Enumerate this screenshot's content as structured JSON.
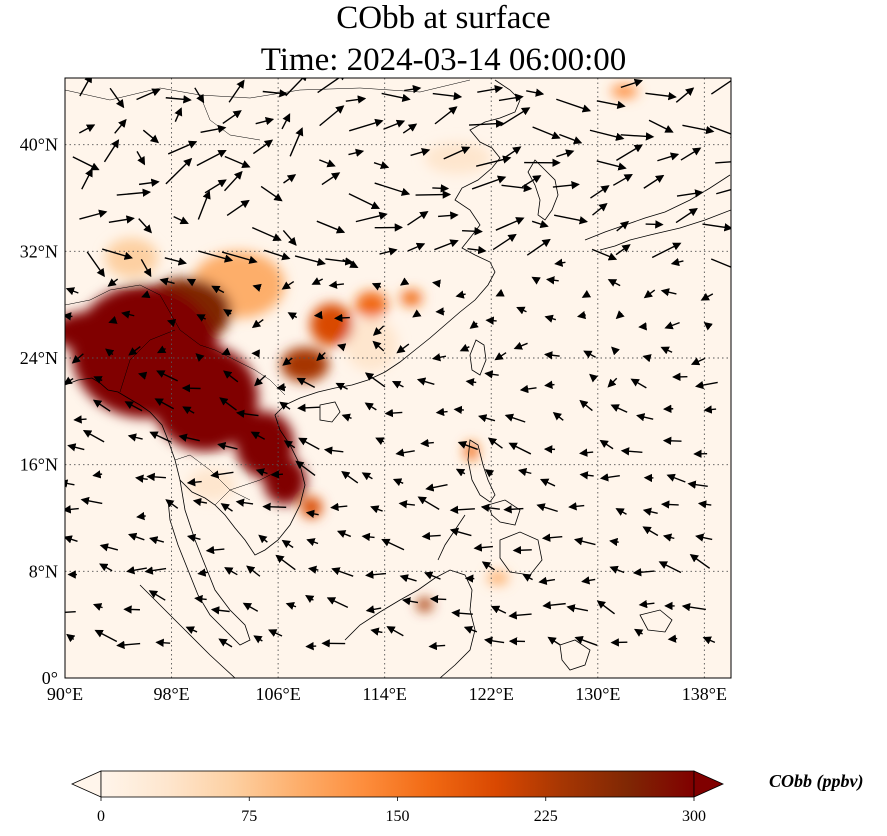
{
  "title_line1": "CObb at surface",
  "title_line2": "Time: 2024-03-14 06:00:00",
  "map": {
    "extent": {
      "lon_min": 90,
      "lon_max": 140,
      "lat_min": 0,
      "lat_max": 45
    },
    "lon_ticks": [
      90,
      98,
      106,
      114,
      122,
      130,
      138
    ],
    "lat_ticks": [
      0,
      8,
      16,
      24,
      32,
      40
    ],
    "lon_tick_labels": [
      "90°E",
      "98°E",
      "106°E",
      "114°E",
      "122°E",
      "130°E",
      "138°E"
    ],
    "lat_tick_labels": [
      "0°",
      "8°N",
      "16°N",
      "24°N",
      "32°N",
      "40°N"
    ],
    "gridlines": true
  },
  "colorbar": {
    "label": "CObb (ppbv)",
    "min": 0,
    "max": 300,
    "ticks": [
      0,
      75,
      150,
      225,
      300
    ],
    "tick_labels": [
      "0",
      "75",
      "150",
      "225",
      "300"
    ],
    "extend": "both",
    "colors": [
      "#fff5eb",
      "#fee6ce",
      "#fdd0a2",
      "#fdae6b",
      "#fd8d3c",
      "#f16913",
      "#d94801",
      "#a63603",
      "#7f2704",
      "#800000"
    ]
  },
  "plumes": [
    {
      "lon": 96.0,
      "lat": 24.5,
      "rx": 5.5,
      "ry": 5.0,
      "value": 300
    },
    {
      "lon": 92.0,
      "lat": 26.0,
      "rx": 3.0,
      "ry": 1.5,
      "value": 300
    },
    {
      "lon": 100.5,
      "lat": 21.0,
      "rx": 4.0,
      "ry": 4.0,
      "value": 300
    },
    {
      "lon": 105.0,
      "lat": 17.5,
      "rx": 2.2,
      "ry": 2.5,
      "value": 300
    },
    {
      "lon": 106.5,
      "lat": 14.8,
      "rx": 1.6,
      "ry": 1.8,
      "value": 290
    },
    {
      "lon": 99.0,
      "lat": 27.5,
      "rx": 3.5,
      "ry": 2.5,
      "value": 260
    },
    {
      "lon": 103.0,
      "lat": 29.5,
      "rx": 3.5,
      "ry": 2.5,
      "value": 110
    },
    {
      "lon": 110.0,
      "lat": 26.5,
      "rx": 1.6,
      "ry": 1.6,
      "value": 190
    },
    {
      "lon": 108.0,
      "lat": 23.5,
      "rx": 1.8,
      "ry": 1.3,
      "value": 220
    },
    {
      "lon": 113.0,
      "lat": 28.0,
      "rx": 1.2,
      "ry": 1.0,
      "value": 170
    },
    {
      "lon": 116.0,
      "lat": 28.5,
      "rx": 0.8,
      "ry": 0.6,
      "value": 180
    },
    {
      "lon": 113.0,
      "lat": 25.0,
      "rx": 2.0,
      "ry": 2.0,
      "value": 45
    },
    {
      "lon": 108.5,
      "lat": 12.8,
      "rx": 0.8,
      "ry": 0.8,
      "value": 190
    },
    {
      "lon": 101.0,
      "lat": 14.5,
      "rx": 1.8,
      "ry": 1.2,
      "value": 40
    },
    {
      "lon": 95.0,
      "lat": 31.5,
      "rx": 2.0,
      "ry": 1.5,
      "value": 70
    },
    {
      "lon": 117.0,
      "lat": 5.5,
      "rx": 0.6,
      "ry": 0.5,
      "value": 220
    },
    {
      "lon": 120.5,
      "lat": 17.0,
      "rx": 0.5,
      "ry": 0.7,
      "value": 150
    },
    {
      "lon": 122.5,
      "lat": 7.5,
      "rx": 0.8,
      "ry": 0.5,
      "value": 90
    },
    {
      "lon": 119.5,
      "lat": 39.0,
      "rx": 2.5,
      "ry": 1.2,
      "value": 30
    },
    {
      "lon": 132.0,
      "lat": 44.0,
      "rx": 1.0,
      "ry": 0.5,
      "value": 120
    },
    {
      "lon": 126.0,
      "lat": 33.0,
      "rx": 5.0,
      "ry": 2.0,
      "value": 12
    }
  ]
}
